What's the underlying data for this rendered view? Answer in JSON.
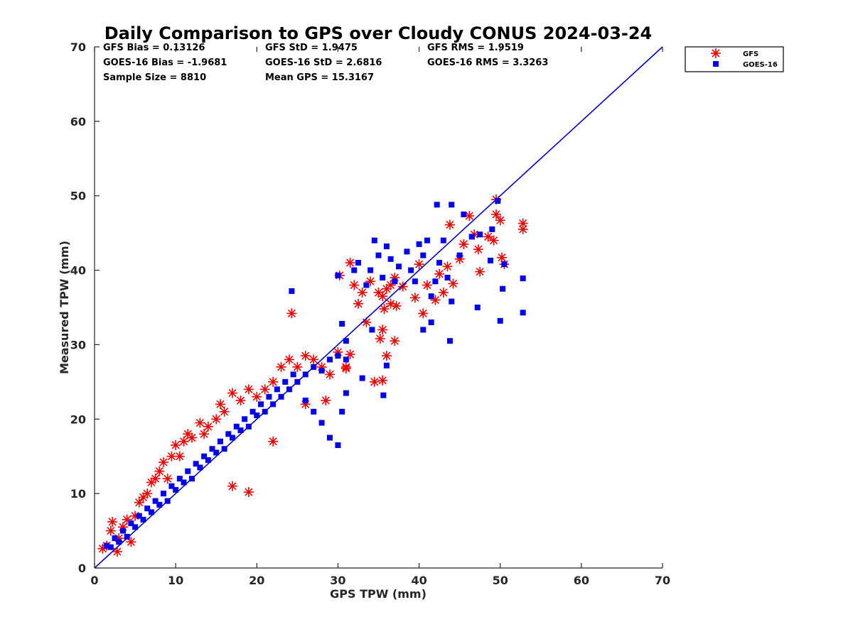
{
  "chart_data": {
    "type": "scatter",
    "title": "Daily Comparison to GPS over Cloudy CONUS 2024-03-24",
    "xlabel": "GPS TPW (mm)",
    "ylabel": "Measured TPW (mm)",
    "xlim": [
      0,
      70
    ],
    "ylim": [
      0,
      70
    ],
    "xticks": [
      "0",
      "10",
      "20",
      "30",
      "40",
      "50",
      "60",
      "70"
    ],
    "yticks": [
      "0",
      "10",
      "20",
      "30",
      "40",
      "50",
      "60",
      "70"
    ],
    "grid": false,
    "legend_position": "outside-top-right",
    "stats": [
      [
        "GFS Bias = 0.13126",
        "GFS StD = 1.9475",
        "GFS RMS = 1.9519"
      ],
      [
        "GOES-16 Bias = -1.9681",
        "GOES-16 StD = 2.6816",
        "GOES-16 RMS = 3.3263"
      ],
      [
        "Sample Size = 8810",
        "Mean GPS = 15.3167",
        ""
      ]
    ],
    "reference_line": {
      "x": [
        0,
        70
      ],
      "y": [
        0,
        70
      ],
      "color": "#0000cc"
    },
    "series": [
      {
        "name": "GFS",
        "marker": "asterisk",
        "color": "#ee0000",
        "points": [
          [
            1,
            2.6
          ],
          [
            1.5,
            3
          ],
          [
            2,
            5
          ],
          [
            2.2,
            6.2
          ],
          [
            2.8,
            2.2
          ],
          [
            3,
            4
          ],
          [
            3.5,
            5.5
          ],
          [
            4,
            6.5
          ],
          [
            4.5,
            3.5
          ],
          [
            5,
            7
          ],
          [
            5.5,
            8.8
          ],
          [
            6,
            9.5
          ],
          [
            6.5,
            10
          ],
          [
            7,
            11.5
          ],
          [
            7.5,
            12
          ],
          [
            8,
            13
          ],
          [
            8.5,
            14.2
          ],
          [
            9,
            12
          ],
          [
            9.5,
            15
          ],
          [
            10,
            16.5
          ],
          [
            10.5,
            15
          ],
          [
            11,
            17
          ],
          [
            11.5,
            18
          ],
          [
            12,
            17.5
          ],
          [
            13,
            19.5
          ],
          [
            13.5,
            18
          ],
          [
            14,
            19
          ],
          [
            15,
            20
          ],
          [
            15.5,
            22
          ],
          [
            16,
            21
          ],
          [
            17,
            23.5
          ],
          [
            18,
            22.5
          ],
          [
            19,
            24
          ],
          [
            20,
            23
          ],
          [
            21,
            24
          ],
          [
            22,
            25
          ],
          [
            23,
            27
          ],
          [
            24,
            28
          ],
          [
            25,
            27
          ],
          [
            26,
            28.5
          ],
          [
            27,
            28
          ],
          [
            28,
            27
          ],
          [
            29,
            26
          ],
          [
            30,
            29
          ],
          [
            31,
            27
          ],
          [
            17,
            11
          ],
          [
            19,
            10.2
          ],
          [
            24.3,
            34.2
          ],
          [
            30.2,
            39.3
          ],
          [
            31.5,
            41
          ],
          [
            32,
            38
          ],
          [
            32.5,
            35.5
          ],
          [
            33,
            37
          ],
          [
            34,
            38.5
          ],
          [
            35,
            37
          ],
          [
            35.5,
            36.5
          ],
          [
            36,
            37.5
          ],
          [
            36.5,
            38
          ],
          [
            37,
            39
          ],
          [
            34.5,
            25
          ],
          [
            35.5,
            25.2
          ],
          [
            36,
            28.5
          ],
          [
            37,
            30.5
          ],
          [
            35.2,
            30.8
          ],
          [
            35.5,
            32
          ],
          [
            38,
            37.8
          ],
          [
            39.5,
            36.3
          ],
          [
            40,
            40.8
          ],
          [
            40.5,
            34.2
          ],
          [
            41,
            38
          ],
          [
            42,
            36
          ],
          [
            42.5,
            39.5
          ],
          [
            43,
            37
          ],
          [
            43.5,
            40.5
          ],
          [
            43.8,
            46.1
          ],
          [
            44.2,
            38.2
          ],
          [
            45,
            41.5
          ],
          [
            45.5,
            43.5
          ],
          [
            46.2,
            47.3
          ],
          [
            46.8,
            44.8
          ],
          [
            47.3,
            42.8
          ],
          [
            47.5,
            39.8
          ],
          [
            48.5,
            44.5
          ],
          [
            49.2,
            44
          ],
          [
            49.5,
            49.5
          ],
          [
            49.5,
            47.5
          ],
          [
            50,
            46.7
          ],
          [
            50.2,
            41.7
          ],
          [
            50.5,
            40.8
          ],
          [
            52.8,
            46.3
          ],
          [
            52.8,
            45.5
          ],
          [
            28.5,
            22.5
          ],
          [
            31,
            26.8
          ],
          [
            31.5,
            28.7
          ],
          [
            33.5,
            33
          ],
          [
            36.5,
            35.5
          ],
          [
            37.2,
            35.2
          ],
          [
            35.7,
            34.8
          ],
          [
            22,
            17
          ],
          [
            26,
            22
          ]
        ]
      },
      {
        "name": "GOES-16",
        "marker": "square",
        "color": "#0000ee",
        "points": [
          [
            1.5,
            3
          ],
          [
            2,
            2.8
          ],
          [
            2.5,
            4
          ],
          [
            3,
            3.5
          ],
          [
            3.5,
            5
          ],
          [
            4,
            4.2
          ],
          [
            4.5,
            6
          ],
          [
            5,
            5.5
          ],
          [
            5.5,
            7
          ],
          [
            6,
            6.5
          ],
          [
            6.5,
            8
          ],
          [
            7,
            7.5
          ],
          [
            7.5,
            9
          ],
          [
            8,
            8.5
          ],
          [
            8.5,
            10
          ],
          [
            9,
            9
          ],
          [
            9.5,
            11
          ],
          [
            10,
            10.5
          ],
          [
            10.5,
            12
          ],
          [
            11,
            11.5
          ],
          [
            11.5,
            13
          ],
          [
            12,
            12
          ],
          [
            12.5,
            14
          ],
          [
            13,
            13.5
          ],
          [
            13.5,
            15
          ],
          [
            14,
            14.5
          ],
          [
            14.5,
            16
          ],
          [
            15,
            15.5
          ],
          [
            15.5,
            17
          ],
          [
            16,
            16
          ],
          [
            16.5,
            18
          ],
          [
            17,
            17.5
          ],
          [
            17.5,
            19
          ],
          [
            18,
            18.5
          ],
          [
            18.5,
            20
          ],
          [
            19,
            19
          ],
          [
            19.5,
            21
          ],
          [
            20,
            20.5
          ],
          [
            20.5,
            22
          ],
          [
            21,
            21
          ],
          [
            21.5,
            23
          ],
          [
            22,
            22
          ],
          [
            22.5,
            24
          ],
          [
            23,
            23
          ],
          [
            23.5,
            25
          ],
          [
            24,
            24
          ],
          [
            24.5,
            26
          ],
          [
            25,
            25
          ],
          [
            26,
            26
          ],
          [
            27,
            27
          ],
          [
            28,
            26.5
          ],
          [
            29,
            28
          ],
          [
            30,
            28.5
          ],
          [
            31,
            28
          ],
          [
            24.3,
            37.2
          ],
          [
            26,
            22.5
          ],
          [
            27,
            21
          ],
          [
            28,
            19.5
          ],
          [
            29,
            17.5
          ],
          [
            30,
            16.5
          ],
          [
            30.5,
            21
          ],
          [
            31,
            23.5
          ],
          [
            30.5,
            32.8
          ],
          [
            31,
            30.5
          ],
          [
            30,
            39.3
          ],
          [
            32,
            40
          ],
          [
            32.5,
            41
          ],
          [
            33.5,
            38
          ],
          [
            34,
            40
          ],
          [
            34.5,
            44
          ],
          [
            35,
            42
          ],
          [
            35.5,
            39
          ],
          [
            36,
            43.2
          ],
          [
            36.5,
            41.5
          ],
          [
            37,
            38.5
          ],
          [
            37.5,
            40.5
          ],
          [
            38.5,
            42.5
          ],
          [
            39,
            40
          ],
          [
            39.5,
            38.5
          ],
          [
            40,
            43.5
          ],
          [
            40.5,
            42
          ],
          [
            41,
            44
          ],
          [
            41.5,
            36.5
          ],
          [
            42,
            38.5
          ],
          [
            42.5,
            41
          ],
          [
            43,
            44
          ],
          [
            43.5,
            39
          ],
          [
            44,
            48.8
          ],
          [
            44,
            35.8
          ],
          [
            45,
            42
          ],
          [
            45.5,
            47.5
          ],
          [
            46.5,
            44.5
          ],
          [
            47.2,
            35
          ],
          [
            47.5,
            44.8
          ],
          [
            48.8,
            41.3
          ],
          [
            49,
            45.5
          ],
          [
            49.7,
            49.3
          ],
          [
            50,
            33.2
          ],
          [
            50.3,
            37.5
          ],
          [
            50.5,
            40.8
          ],
          [
            52.8,
            34.3
          ],
          [
            52.8,
            38.9
          ],
          [
            42.2,
            48.8
          ],
          [
            43.8,
            30.5
          ],
          [
            40.5,
            32
          ],
          [
            41.5,
            33
          ],
          [
            35.6,
            23.2
          ],
          [
            34.2,
            32
          ],
          [
            33,
            25.5
          ],
          [
            36,
            27.2
          ]
        ]
      }
    ]
  }
}
